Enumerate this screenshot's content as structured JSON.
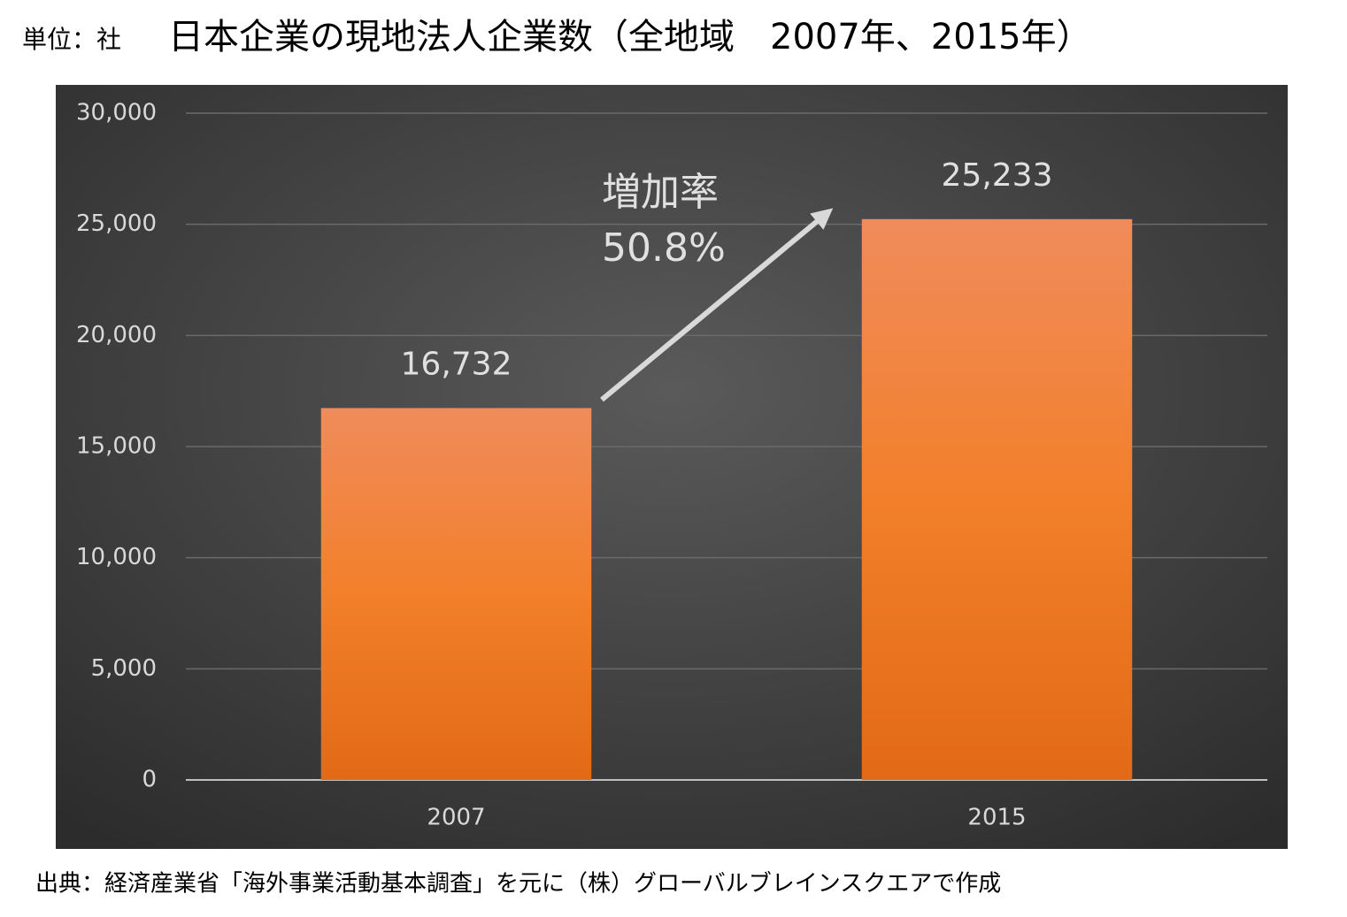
{
  "chart_data": {
    "type": "bar",
    "unit_label": "単位：社",
    "title": "日本企業の現地法人企業数（全地域　2007年、2015年）",
    "categories": [
      "2007",
      "2015"
    ],
    "values": [
      16732,
      25233
    ],
    "value_labels": [
      "16,732",
      "25,233"
    ],
    "color": "#f07f2c",
    "ylim": [
      0,
      30000
    ],
    "yticks": [
      0,
      {
        "value": 5000,
        "label": "5,000"
      },
      {
        "value": 10000,
        "label": "10,000"
      },
      {
        "value": 15000,
        "label": "15,000"
      },
      {
        "value": 20000,
        "label": "20,000"
      },
      {
        "value": 25000,
        "label": "25,000"
      },
      {
        "value": 30000,
        "label": "30,000"
      }
    ],
    "grid": true,
    "annotations": [
      "増加率",
      "50.8%"
    ],
    "source": "出典：経済産業省「海外事業活動基本調査」を元に（株）グローバルブレインスクエアで作成"
  }
}
